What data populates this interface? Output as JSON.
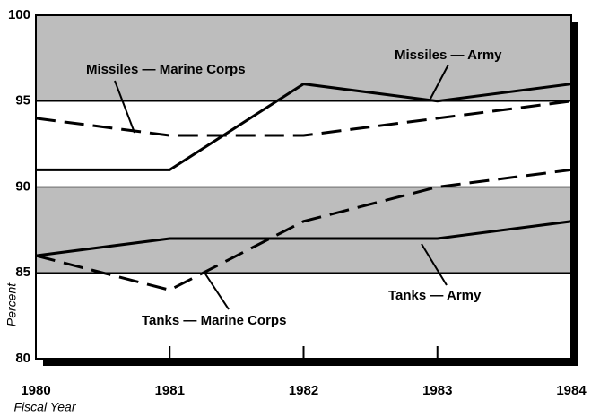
{
  "chart_data": {
    "type": "line",
    "x": [
      1980,
      1981,
      1982,
      1983,
      1984
    ],
    "xlim": [
      1980,
      1984
    ],
    "xticks": [
      1980,
      1981,
      1982,
      1983,
      1984
    ],
    "ylim": [
      80,
      100
    ],
    "yticks": [
      80,
      85,
      90,
      95,
      100
    ],
    "xlabel": "Fiscal Year",
    "ylabel": "Percent",
    "bands": [
      [
        95,
        100
      ],
      [
        85,
        90
      ]
    ],
    "band_color": "#bdbdbd",
    "series": [
      {
        "name": "Missiles — Army",
        "color": "#000000",
        "style": "solid",
        "values": [
          91,
          91,
          96,
          95,
          96
        ]
      },
      {
        "name": "Missiles — Marine Corps",
        "color": "#000000",
        "style": "dashed",
        "values": [
          94,
          93,
          93,
          94,
          95
        ]
      },
      {
        "name": "Tanks — Army",
        "color": "#000000",
        "style": "solid",
        "values": [
          86,
          87,
          87,
          87,
          88
        ]
      },
      {
        "name": "Tanks — Marine Corps",
        "color": "#000000",
        "style": "dashed",
        "values": [
          86,
          84,
          88,
          90,
          91
        ]
      }
    ]
  }
}
